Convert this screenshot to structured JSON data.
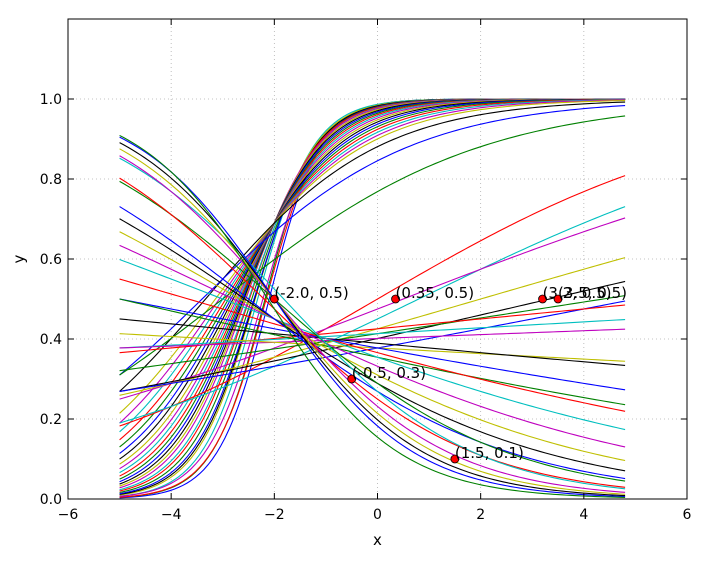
{
  "chart_data": {
    "type": "line",
    "title": "",
    "xlabel": "x",
    "ylabel": "y",
    "xlim": [
      -6,
      6
    ],
    "ylim": [
      0.0,
      1.2
    ],
    "x_ticks": [
      "−6",
      "−4",
      "−2",
      "0",
      "2",
      "4",
      "6"
    ],
    "y_ticks": [
      "0.0",
      "0.2",
      "0.4",
      "0.6",
      "0.8",
      "1.0"
    ],
    "x_tick_values": [
      -6,
      -4,
      -2,
      0,
      2,
      4,
      6
    ],
    "y_tick_values": [
      0.0,
      0.2,
      0.4,
      0.6,
      0.8,
      1.0
    ],
    "grid": true,
    "grid_style": "dotted",
    "curve_domain": [
      -5,
      4.8
    ],
    "series_description": "Family of logistic (sigmoid) curves y = 1/(1+exp(-(w*x+b)))",
    "colors": [
      "#0000ff",
      "#008000",
      "#ff0000",
      "#00bfbf",
      "#bf00bf",
      "#bfbf00",
      "#000000"
    ],
    "curves": [
      {
        "w": 2.0,
        "b": 4.2
      },
      {
        "w": 1.95,
        "b": 4.25
      },
      {
        "w": 1.9,
        "b": 4.1
      },
      {
        "w": 1.85,
        "b": 4.3
      },
      {
        "w": 1.8,
        "b": 4.0
      },
      {
        "w": 1.75,
        "b": 4.15
      },
      {
        "w": 1.7,
        "b": 4.05
      },
      {
        "w": 1.65,
        "b": 3.95
      },
      {
        "w": 1.6,
        "b": 3.9
      },
      {
        "w": 1.55,
        "b": 3.85
      },
      {
        "w": 1.5,
        "b": 3.75
      },
      {
        "w": 1.45,
        "b": 3.7
      },
      {
        "w": 1.4,
        "b": 3.6
      },
      {
        "w": 1.35,
        "b": 3.5
      },
      {
        "w": 1.3,
        "b": 3.4
      },
      {
        "w": 1.25,
        "b": 3.3
      },
      {
        "w": 1.2,
        "b": 3.2
      },
      {
        "w": 1.15,
        "b": 3.1
      },
      {
        "w": 1.1,
        "b": 3.0
      },
      {
        "w": 1.05,
        "b": 2.9
      },
      {
        "w": 1.0,
        "b": 2.8
      },
      {
        "w": 0.95,
        "b": 2.7
      },
      {
        "w": 0.9,
        "b": 2.6
      },
      {
        "w": 0.85,
        "b": 2.5
      },
      {
        "w": 0.8,
        "b": 2.4
      },
      {
        "w": 0.75,
        "b": 2.3
      },
      {
        "w": 0.7,
        "b": 2.2
      },
      {
        "w": 0.6,
        "b": 2.0
      },
      {
        "w": 0.5,
        "b": 1.7
      },
      {
        "w": 0.4,
        "b": 1.2
      },
      {
        "w": 0.3,
        "b": 0.0
      },
      {
        "w": 0.25,
        "b": -0.2
      },
      {
        "w": 0.2,
        "b": -0.1
      },
      {
        "w": 0.15,
        "b": -0.3
      },
      {
        "w": 0.12,
        "b": -0.4
      },
      {
        "w": 0.1,
        "b": -0.5
      },
      {
        "w": 0.08,
        "b": -0.35
      },
      {
        "w": 0.05,
        "b": -0.3
      },
      {
        "w": 0.03,
        "b": -0.35
      },
      {
        "w": 0.02,
        "b": -0.4
      },
      {
        "w": -0.03,
        "b": -0.5
      },
      {
        "w": -0.05,
        "b": -0.45
      },
      {
        "w": -0.1,
        "b": -0.5
      },
      {
        "w": -0.12,
        "b": -0.6
      },
      {
        "w": -0.15,
        "b": -0.55
      },
      {
        "w": -0.2,
        "b": -0.6
      },
      {
        "w": -0.25,
        "b": -0.7
      },
      {
        "w": -0.3,
        "b": -0.8
      },
      {
        "w": -0.35,
        "b": -0.9
      },
      {
        "w": -0.4,
        "b": -1.0
      },
      {
        "w": -0.45,
        "b": -0.9
      },
      {
        "w": -0.5,
        "b": -1.1
      },
      {
        "w": -0.55,
        "b": -1.0
      },
      {
        "w": -0.6,
        "b": -1.2
      },
      {
        "w": -0.65,
        "b": -1.3
      },
      {
        "w": -0.7,
        "b": -1.4
      },
      {
        "w": -0.75,
        "b": -1.5
      },
      {
        "w": -0.8,
        "b": -1.7
      }
    ],
    "points": [
      {
        "x": -2.0,
        "y": 0.5,
        "label": "(-2.0, 0.5)"
      },
      {
        "x": 0.35,
        "y": 0.5,
        "label": "(0.35, 0.5)"
      },
      {
        "x": 3.2,
        "y": 0.5,
        "label": "(3.2, 0.5)"
      },
      {
        "x": 3.5,
        "y": 0.5,
        "label": "(3.5, 0.5)"
      },
      {
        "x": -0.5,
        "y": 0.3,
        "label": "(-0.5, 0.3)"
      },
      {
        "x": 1.5,
        "y": 0.1,
        "label": "(1.5, 0.1)"
      }
    ],
    "point_color": "#ff0000"
  }
}
